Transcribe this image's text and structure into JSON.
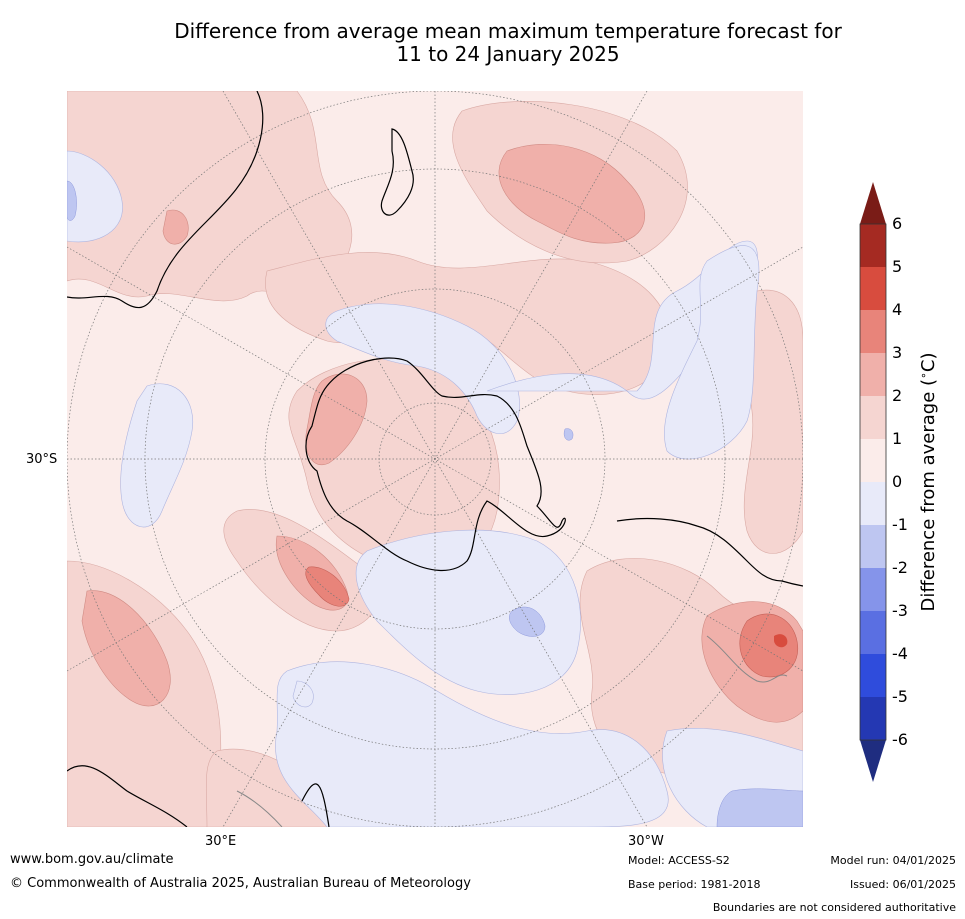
{
  "title": {
    "line1": "Difference from average mean maximum temperature forecast for",
    "line2": "11 to 24 January 2025"
  },
  "map": {
    "projection": "south-polar stereographic",
    "labels": {
      "left_lat": "30°S",
      "bottom_lon_left": "30°E",
      "bottom_lon_right": "30°W"
    }
  },
  "colorbar": {
    "label": "Difference from average (°C)",
    "label_text": "Difference from average (",
    "label_unit": "C)",
    "label_degree": "∘",
    "ticks": [
      "6",
      "5",
      "4",
      "3",
      "2",
      "1",
      "0",
      "-1",
      "-2",
      "-3",
      "-4",
      "-5",
      "-6"
    ],
    "bins": [
      {
        "range": "> 6",
        "color": "#7a1c17"
      },
      {
        "range": "5 to 6",
        "color": "#a52a22"
      },
      {
        "range": "4 to 5",
        "color": "#d84c3e"
      },
      {
        "range": "3 to 4",
        "color": "#e8847a"
      },
      {
        "range": "2 to 3",
        "color": "#f0b0aa"
      },
      {
        "range": "1 to 2",
        "color": "#f5d5d1"
      },
      {
        "range": "0 to 1",
        "color": "#fbecea"
      },
      {
        "range": "-1 to 0",
        "color": "#e8eaf9"
      },
      {
        "range": "-2 to -1",
        "color": "#bec6f1"
      },
      {
        "range": "-3 to -2",
        "color": "#8594ea"
      },
      {
        "range": "-4 to -3",
        "color": "#5a6fe2"
      },
      {
        "range": "-5 to -4",
        "color": "#2f4cdc"
      },
      {
        "range": "-6 to -5",
        "color": "#2438b3"
      },
      {
        "range": "< -6",
        "color": "#1f2d80"
      }
    ]
  },
  "footer": {
    "website": "www.bom.gov.au/climate",
    "copyright": "© Commonwealth of Australia 2025, Australian Bureau of Meteorology",
    "model": "Model: ACCESS-S2",
    "base_period": "Base period: 1981-2018",
    "model_run": "Model run: 04/01/2025",
    "issued": "Issued: 06/01/2025",
    "disclaimer": "Boundaries are not considered authoritative"
  }
}
